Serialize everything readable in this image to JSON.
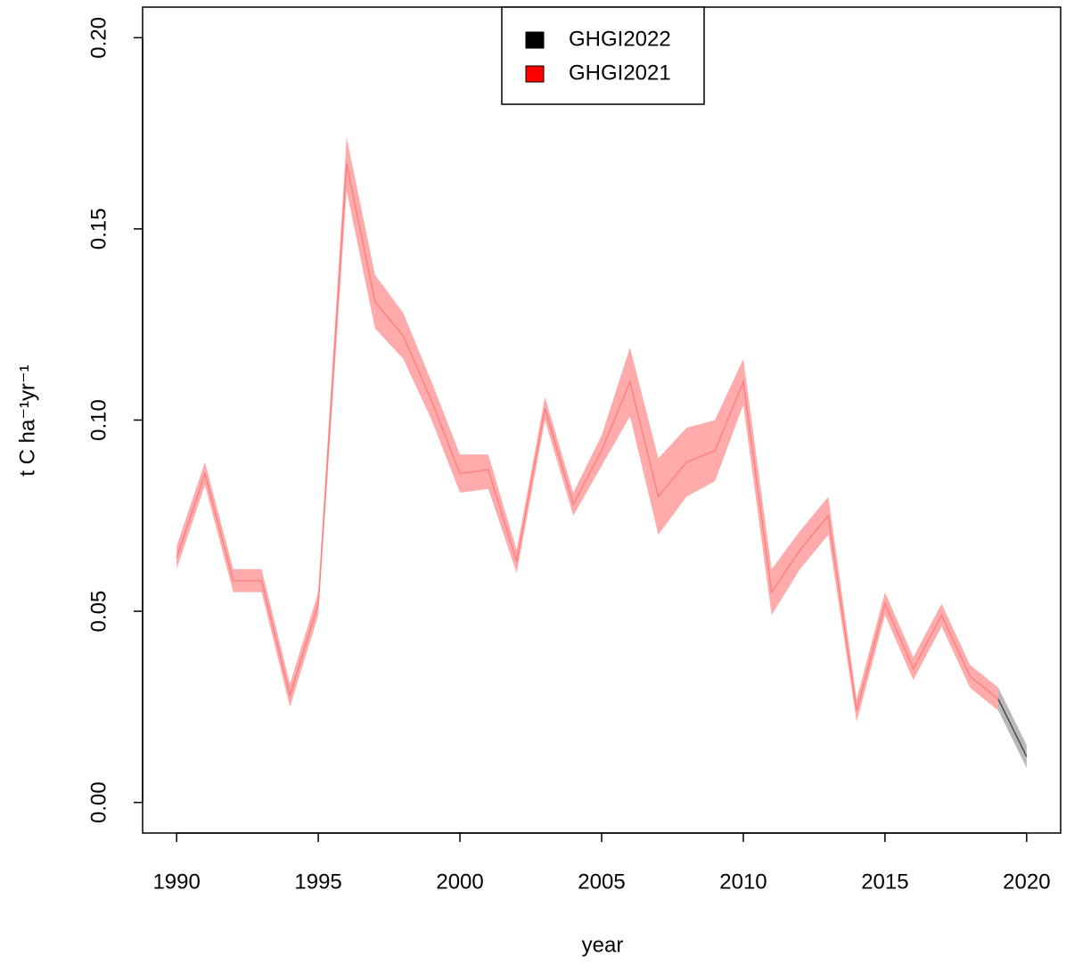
{
  "chart_data": {
    "type": "band-line",
    "x_label": "year",
    "y_label": "t C ha⁻¹yr⁻¹",
    "xlim": [
      1988.8,
      2021.2
    ],
    "ylim": [
      -0.008,
      0.208
    ],
    "xticks": [
      1990,
      1995,
      2000,
      2005,
      2010,
      2015,
      2020
    ],
    "yticks": [
      {
        "value": 0,
        "label": "0.00"
      },
      {
        "value": 0.05,
        "label": "0.05"
      },
      {
        "value": 0.1,
        "label": "0.10"
      },
      {
        "value": 0.15,
        "label": "0.15"
      },
      {
        "value": 0.2,
        "label": "0.20"
      }
    ],
    "legend": "top",
    "series": [
      {
        "name": "GHGI2022",
        "color": "#000000",
        "x": [
          2019,
          2020
        ],
        "values": [
          0.027,
          0.012
        ],
        "lower": [
          0.024,
          0.009
        ],
        "upper": [
          0.03,
          0.015
        ]
      },
      {
        "name": "GHGI2021",
        "color": "#ff0000",
        "x": [
          1990,
          1991,
          1992,
          1993,
          1994,
          1995,
          1996,
          1997,
          1998,
          1999,
          2000,
          2001,
          2002,
          2003,
          2004,
          2005,
          2006,
          2007,
          2008,
          2009,
          2010,
          2011,
          2012,
          2013,
          2014,
          2015,
          2016,
          2017,
          2018,
          2019
        ],
        "values": [
          0.064,
          0.086,
          0.058,
          0.058,
          0.028,
          0.052,
          0.167,
          0.131,
          0.122,
          0.105,
          0.086,
          0.087,
          0.063,
          0.103,
          0.078,
          0.092,
          0.11,
          0.08,
          0.089,
          0.092,
          0.11,
          0.055,
          0.066,
          0.075,
          0.024,
          0.052,
          0.035,
          0.049,
          0.033,
          0.027
        ],
        "lower": [
          0.061,
          0.083,
          0.055,
          0.055,
          0.025,
          0.049,
          0.16,
          0.124,
          0.116,
          0.1,
          0.081,
          0.082,
          0.06,
          0.1,
          0.075,
          0.088,
          0.101,
          0.07,
          0.08,
          0.084,
          0.104,
          0.049,
          0.061,
          0.07,
          0.021,
          0.049,
          0.032,
          0.046,
          0.03,
          0.024
        ],
        "upper": [
          0.067,
          0.089,
          0.061,
          0.061,
          0.031,
          0.055,
          0.174,
          0.138,
          0.128,
          0.11,
          0.091,
          0.091,
          0.066,
          0.106,
          0.081,
          0.096,
          0.119,
          0.09,
          0.098,
          0.1,
          0.116,
          0.061,
          0.071,
          0.08,
          0.027,
          0.055,
          0.038,
          0.052,
          0.036,
          0.03
        ]
      }
    ]
  }
}
